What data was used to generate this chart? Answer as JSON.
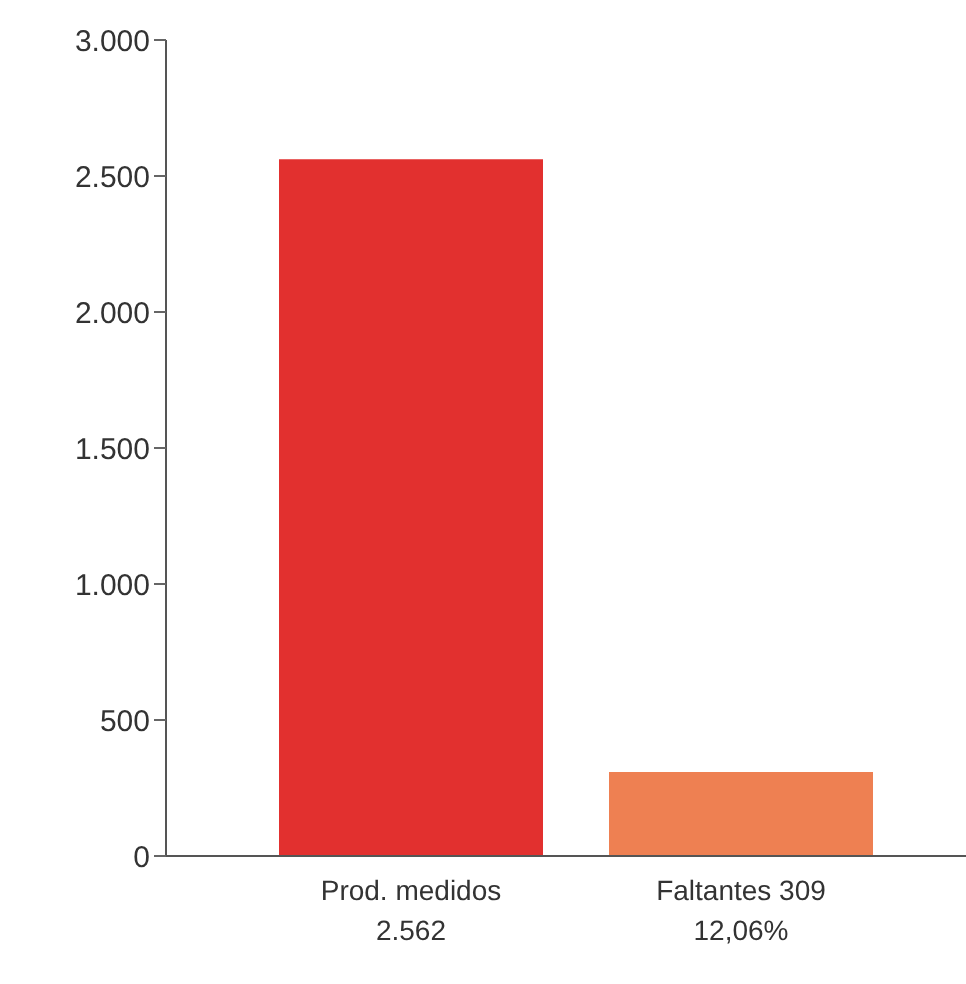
{
  "chart_data": {
    "type": "bar",
    "categories": [
      "Prod. medidos 2.562",
      "Faltantes 309 12,06%"
    ],
    "values": [
      2562,
      309
    ],
    "colors": [
      "#e2302f",
      "#ee8052"
    ],
    "ylim": [
      0,
      3000
    ],
    "yticks": [
      0,
      500,
      {
        "value": 1000,
        "label": "1.000"
      },
      {
        "value": 1500,
        "label": "1.500"
      },
      {
        "value": 2000,
        "label": "2.000"
      },
      {
        "value": 2500,
        "label": "2.500"
      },
      {
        "value": 3000,
        "label": "3.000"
      }
    ],
    "grid": false,
    "legend": false
  }
}
